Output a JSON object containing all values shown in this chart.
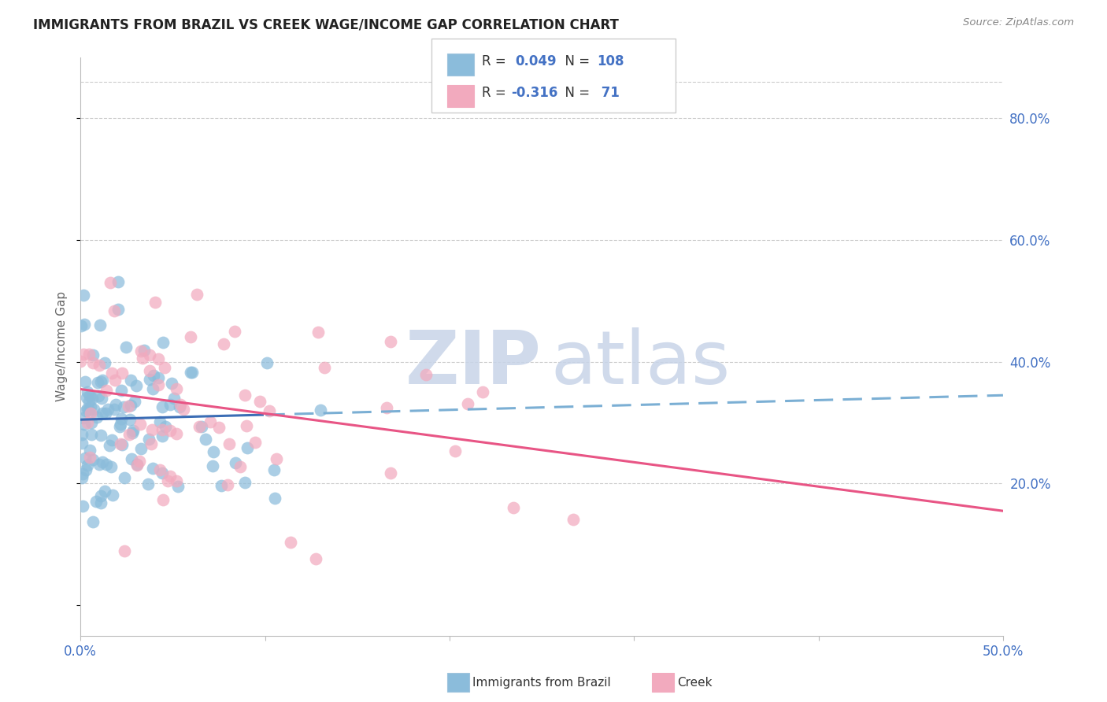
{
  "title": "IMMIGRANTS FROM BRAZIL VS CREEK WAGE/INCOME GAP CORRELATION CHART",
  "source": "Source: ZipAtlas.com",
  "ylabel": "Wage/Income Gap",
  "right_yticks": [
    "80.0%",
    "60.0%",
    "40.0%",
    "20.0%"
  ],
  "right_ytick_vals": [
    0.8,
    0.6,
    0.4,
    0.2
  ],
  "xlim": [
    0.0,
    0.5
  ],
  "ylim": [
    -0.05,
    0.9
  ],
  "scatter_blue_color": "#8BBCDB",
  "scatter_pink_color": "#F2AABE",
  "line_blue_solid_color": "#3B6DB5",
  "line_blue_dash_color": "#7BAFD4",
  "line_pink_color": "#E85585",
  "watermark_zip_color": "#C8D4E8",
  "watermark_atlas_color": "#C8D4E8",
  "grid_color": "#CCCCCC",
  "background_color": "#FFFFFF",
  "title_fontsize": 12,
  "axis_label_color": "#4472C4",
  "text_dark": "#222222",
  "text_gray": "#888888",
  "brazil_R": 0.049,
  "brazil_N": 108,
  "creek_R": -0.316,
  "creek_N": 71,
  "brazil_seed": 42,
  "creek_seed": 7,
  "blue_line_y0": 0.305,
  "blue_line_y1": 0.345,
  "pink_line_y0": 0.355,
  "pink_line_y1": 0.155
}
